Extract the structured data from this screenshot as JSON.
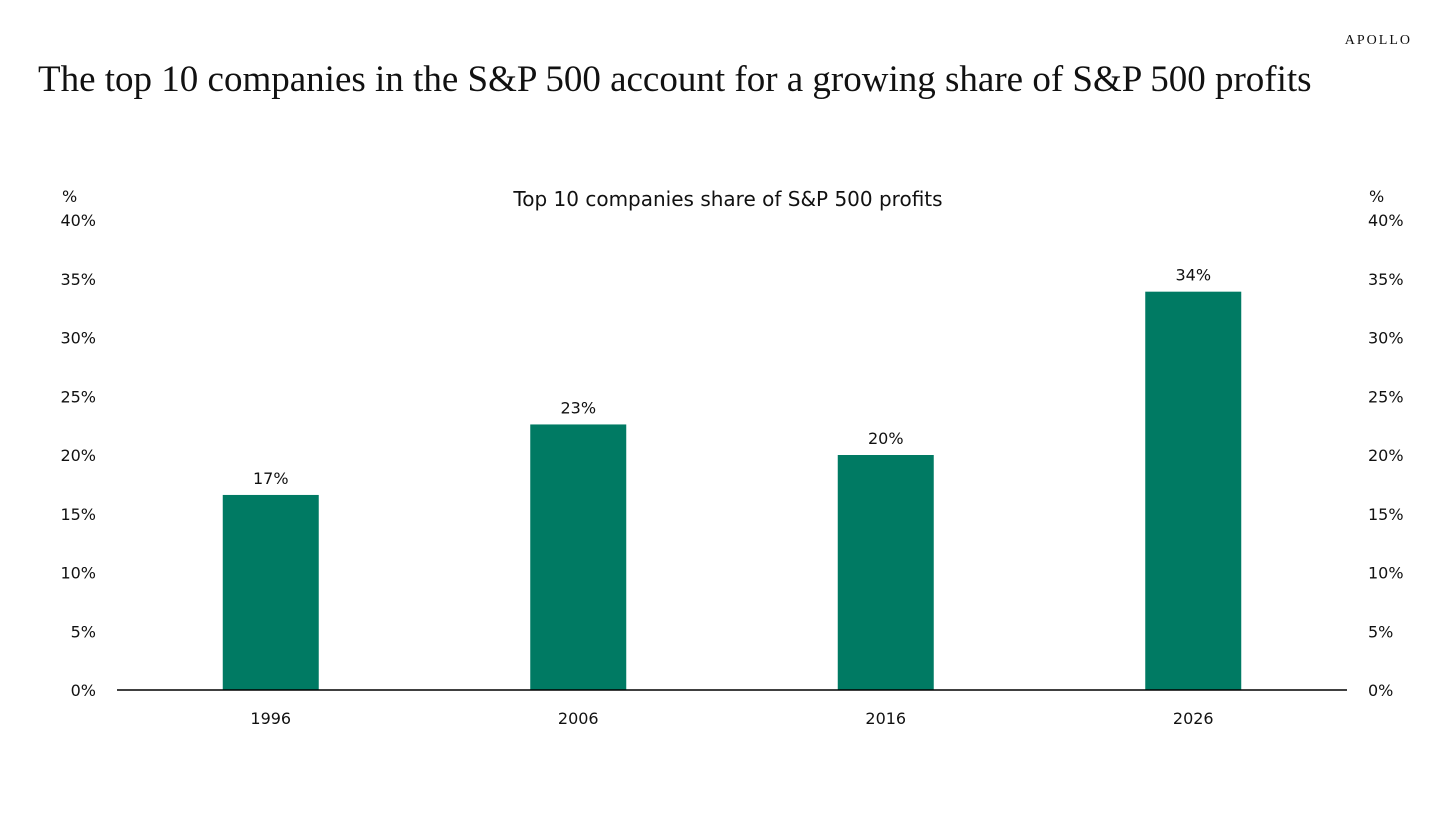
{
  "header": {
    "brand": "APOLLO",
    "headline": "The top 10 companies in the S&P 500 account for a growing share of S&P 500 profits"
  },
  "chart_data": {
    "type": "bar",
    "title": "Top 10 companies share of S&P 500 profits",
    "categories": [
      "1996",
      "2006",
      "2016",
      "2026"
    ],
    "values": [
      16.6,
      22.6,
      20.0,
      33.9
    ],
    "data_labels": [
      "17%",
      "23%",
      "20%",
      "34%"
    ],
    "ylabel_left": "%",
    "ylabel_right": "%",
    "ylim": [
      0,
      40
    ],
    "yticks": [
      "0%",
      "5%",
      "10%",
      "15%",
      "20%",
      "25%",
      "30%",
      "35%",
      "40%"
    ],
    "ytick_values": [
      0,
      5,
      10,
      15,
      20,
      25,
      30,
      35,
      40
    ],
    "grid": false,
    "legend": "none",
    "bar_color": "#007a63"
  }
}
